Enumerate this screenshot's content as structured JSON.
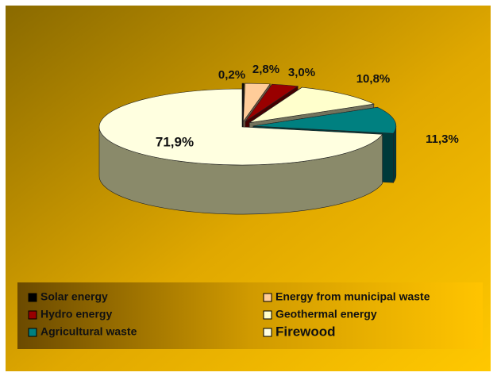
{
  "chart_data": {
    "type": "pie",
    "categories": [
      "Solar energy",
      "Energy from municipal waste",
      "Hydro energy",
      "Geothermal energy",
      "Agricultural waste",
      "Firewood"
    ],
    "values": [
      0.2,
      2.8,
      3.0,
      10.8,
      11.3,
      71.9
    ],
    "value_labels": [
      "0,2%",
      "2,8%",
      "3,0%",
      "10,8%",
      "11,3%",
      "71,9%"
    ],
    "colors": [
      "#000000",
      "#ffcc99",
      "#990000",
      "#ffffcc",
      "#008080",
      "#ffffe0"
    ]
  }
}
